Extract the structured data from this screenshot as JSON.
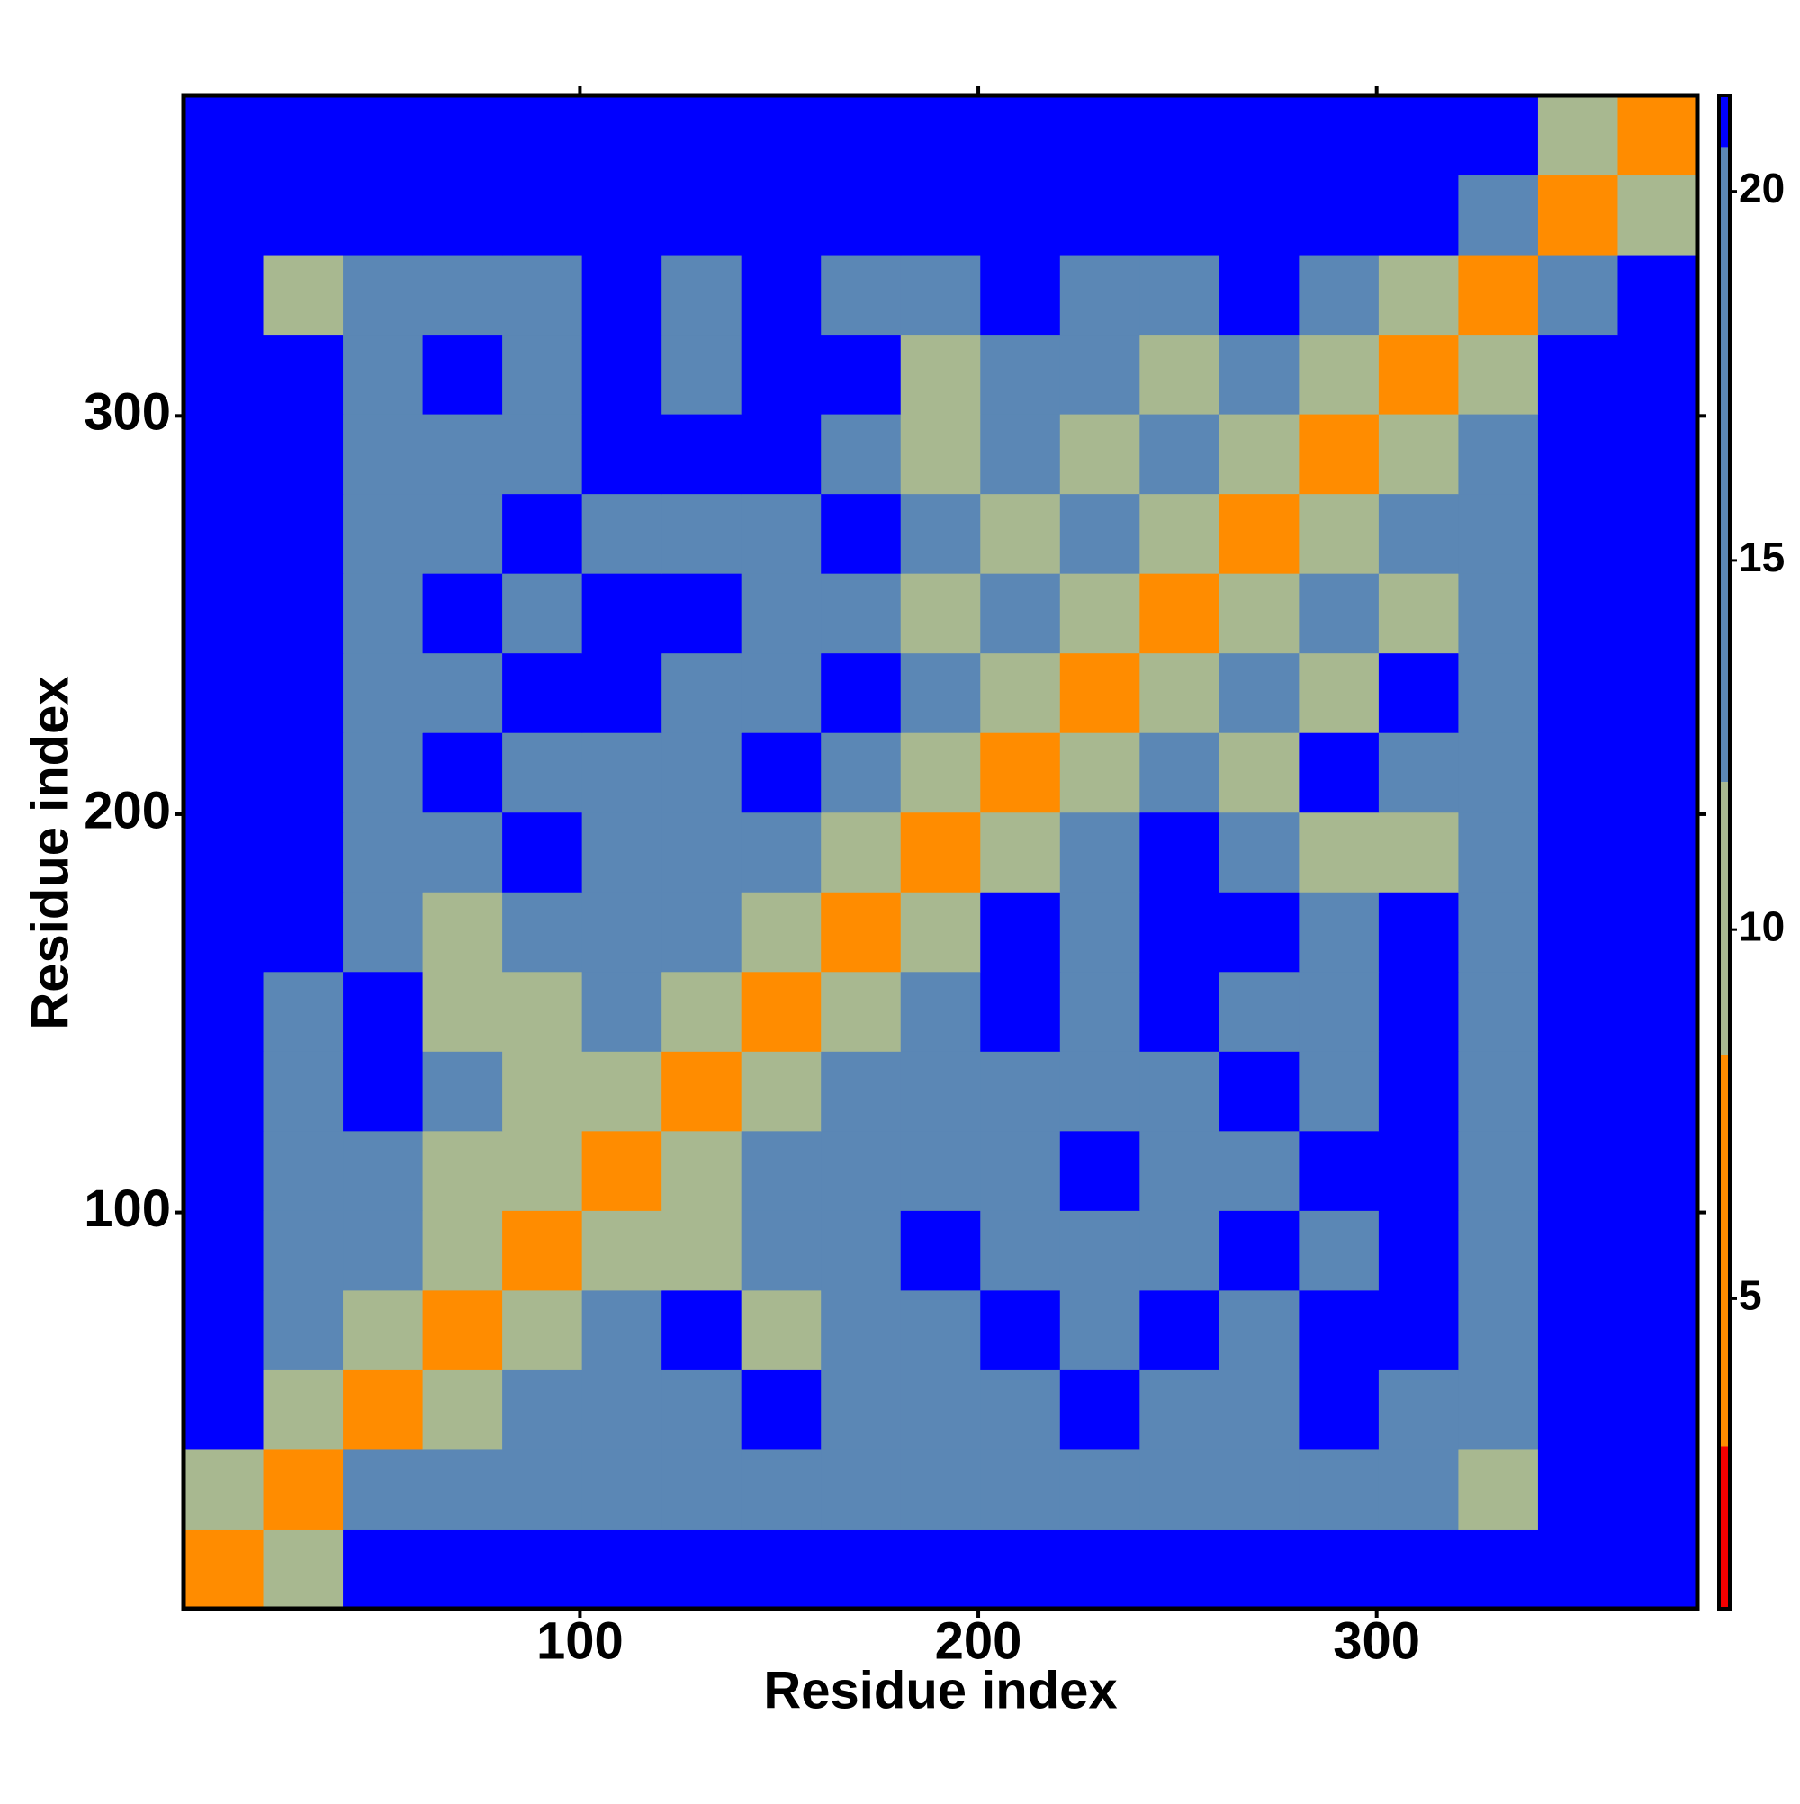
{
  "chart_data": {
    "type": "heatmap",
    "x_label": "Residue index",
    "y_label": "Residue index",
    "bins": [
      0.5,
      20.5,
      40.5,
      60.5,
      80.5,
      100.5,
      120.5,
      140.5,
      160.5,
      180.5,
      200.5,
      220.5,
      240.5,
      260.5,
      280.5,
      300.5,
      320.5,
      340.5,
      360.5,
      380.5
    ],
    "xlim": [
      0.5,
      380.5
    ],
    "ylim": [
      0.5,
      380.5
    ],
    "xticks": [
      100,
      200,
      300
    ],
    "yticks": [
      100,
      200,
      300
    ],
    "clim": [
      0.8,
      21.3
    ],
    "cticks": [
      5,
      10,
      15,
      20
    ],
    "colorscale": [
      {
        "max": 3,
        "color": "#f20000"
      },
      {
        "max": 8.3,
        "color": "#ff8c00"
      },
      {
        "max": 12,
        "color": "#a8b890"
      },
      {
        "max": 20.6,
        "color": "#5b87b5"
      },
      {
        "max": 1000,
        "color": "#0000ff"
      }
    ],
    "z": [
      [
        4,
        12,
        22,
        22,
        22,
        22,
        22,
        22,
        22,
        22,
        22,
        22,
        22,
        22,
        22,
        22,
        22,
        22,
        22
      ],
      [
        12,
        4,
        15,
        18,
        18,
        20,
        18,
        18,
        20,
        20,
        18,
        18,
        20,
        20,
        18,
        18,
        11,
        22,
        22
      ],
      [
        22,
        12,
        4,
        11,
        18,
        17,
        17,
        21.5,
        17,
        17,
        18,
        21.5,
        17,
        17,
        21.5,
        17,
        18,
        22,
        22
      ],
      [
        22,
        18,
        11,
        4,
        11,
        17,
        21.5,
        11,
        17,
        17,
        21.5,
        17,
        21.5,
        17,
        21.5,
        21.5,
        18,
        22,
        22
      ],
      [
        22,
        18,
        17,
        11,
        4,
        11,
        11,
        17,
        17,
        21.5,
        17,
        17,
        17,
        21.5,
        17,
        21.5,
        17,
        22,
        22
      ],
      [
        22,
        17,
        17,
        11,
        11,
        4,
        11,
        17,
        17,
        17,
        17,
        21.5,
        17,
        17,
        21.5,
        21.5,
        17,
        22,
        22
      ],
      [
        22,
        17,
        21.5,
        17,
        11,
        11,
        4,
        11,
        17,
        17,
        17,
        17,
        17,
        21.5,
        17,
        21.5,
        17,
        22,
        22
      ],
      [
        22,
        17,
        21.5,
        11,
        11,
        17,
        11,
        4,
        11,
        17,
        21.5,
        17,
        21.5,
        17,
        17,
        21.5,
        17,
        22,
        22
      ],
      [
        22,
        22,
        17,
        11,
        17,
        17,
        17,
        11,
        4,
        11,
        21.5,
        17,
        21.5,
        21.5,
        17,
        21.5,
        17,
        22,
        22
      ],
      [
        22,
        22,
        17,
        17,
        21.5,
        17,
        17,
        17,
        11,
        4,
        11,
        17,
        21.5,
        17,
        11,
        11,
        17,
        22,
        22
      ],
      [
        22,
        22,
        17,
        21.5,
        17,
        17,
        17,
        21.5,
        17,
        11,
        4,
        11,
        17,
        11,
        21.5,
        17,
        17,
        22,
        22
      ],
      [
        22,
        22,
        17,
        17,
        21.5,
        21.5,
        17,
        17,
        21.5,
        17,
        11,
        4,
        11,
        17,
        11,
        21.5,
        17,
        22,
        22
      ],
      [
        22,
        22,
        17,
        21.5,
        17,
        21.5,
        21.5,
        17,
        17,
        11,
        17,
        11,
        4,
        11,
        17,
        11,
        17,
        22,
        22
      ],
      [
        22,
        22,
        17,
        17,
        21.5,
        17,
        17,
        17,
        21.5,
        17,
        11,
        17,
        11,
        4,
        11,
        17,
        17,
        22,
        22
      ],
      [
        22,
        22,
        17,
        17,
        17,
        21.5,
        21.5,
        21.5,
        17,
        11,
        17,
        11,
        17,
        11,
        4,
        11,
        17,
        22,
        22
      ],
      [
        22,
        22,
        17,
        21.5,
        17,
        21.5,
        17,
        21.5,
        21.5,
        11,
        17,
        17,
        11,
        17,
        11,
        4,
        11,
        22,
        22
      ],
      [
        22,
        11,
        17,
        17,
        17,
        21.5,
        17,
        21.5,
        17,
        17,
        21.5,
        17,
        17,
        21.5,
        17,
        11,
        4,
        15,
        22
      ],
      [
        22,
        22,
        22,
        22,
        22,
        22,
        22,
        22,
        22,
        22,
        22,
        22,
        22,
        22,
        22,
        22,
        15,
        4,
        12
      ],
      [
        22,
        22,
        22,
        22,
        22,
        22,
        22,
        22,
        22,
        22,
        22,
        22,
        22,
        22,
        22,
        22,
        22,
        12,
        4
      ]
    ]
  }
}
